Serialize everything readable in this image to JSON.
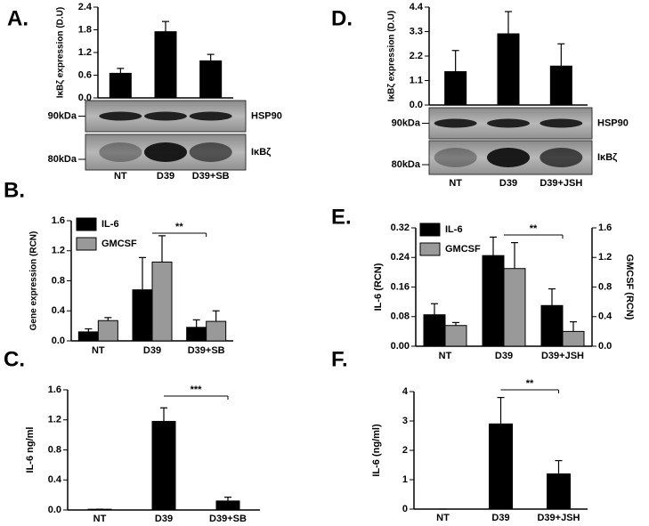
{
  "chart_data": [
    {
      "type": "bar",
      "label": "A.",
      "ylabel": "IκBζ expression (D.U)",
      "categories": [
        "NT",
        "D39",
        "D39+SB"
      ],
      "series": [
        {
          "name": null,
          "color": "#000000",
          "values": [
            0.65,
            1.75,
            0.98
          ],
          "errors": [
            0.13,
            0.27,
            0.17
          ]
        }
      ],
      "ylim": [
        0,
        2.4
      ],
      "yticks": [
        {
          "value": 0,
          "label": "0.0"
        },
        0.6,
        1.2,
        1.8,
        2.4
      ],
      "blot": [
        {
          "size": "90kDa",
          "protein": "HSP90"
        },
        {
          "size": "80kDa",
          "protein": "IκBζ"
        }
      ]
    },
    {
      "type": "bar",
      "label": "B.",
      "ylabel": "Gene expression (RCN)",
      "categories": [
        "NT",
        "D39",
        "D39+SB"
      ],
      "series": [
        {
          "name": "IL-6",
          "color": "#000000",
          "values": [
            0.12,
            0.68,
            0.18
          ],
          "errors": [
            0.04,
            0.43,
            0.1
          ]
        },
        {
          "name": "GMCSF",
          "color": "#999999",
          "values": [
            0.27,
            1.05,
            0.26
          ],
          "errors": [
            0.04,
            0.35,
            0.14
          ]
        }
      ],
      "ylim": [
        0,
        1.6
      ],
      "yticks": [
        {
          "value": 0,
          "label": "0.0"
        },
        0.4,
        0.8,
        1.2,
        1.6
      ],
      "annotation": "**"
    },
    {
      "type": "bar",
      "label": "C.",
      "ylabel": "IL-6 ng/ml",
      "categories": [
        "NT",
        "D39",
        "D39+SB"
      ],
      "series": [
        {
          "name": null,
          "color": "#000000",
          "values": [
            0.01,
            1.18,
            0.12
          ],
          "errors": [
            0,
            0.18,
            0.05
          ]
        }
      ],
      "ylim": [
        0,
        1.6
      ],
      "yticks": [
        {
          "value": 0,
          "label": "0.0"
        },
        0.4,
        0.8,
        1.2,
        1.6
      ],
      "annotation": "***"
    },
    {
      "type": "bar",
      "label": "D.",
      "ylabel": "IκBζ expression (D.U)",
      "categories": [
        "NT",
        "D39",
        "D39+JSH"
      ],
      "series": [
        {
          "name": null,
          "color": "#000000",
          "values": [
            1.5,
            3.2,
            1.75
          ],
          "errors": [
            0.95,
            1.0,
            1.0
          ]
        }
      ],
      "ylim": [
        0,
        4.4
      ],
      "yticks": [
        {
          "value": 0,
          "label": "0.0"
        },
        1.1,
        2.2,
        3.3,
        4.4
      ],
      "blot": [
        {
          "size": "90kDa",
          "protein": "HSP90"
        },
        {
          "size": "80kDa",
          "protein": "IκBζ"
        }
      ]
    },
    {
      "type": "bar",
      "label": "E.",
      "ylabel": "IL-6 (RCN)",
      "y2label": "GMCSF (RCN)",
      "categories": [
        "NT",
        "D39",
        "D39+JSH"
      ],
      "series": [
        {
          "name": "IL-6",
          "color": "#000000",
          "values": [
            0.085,
            0.245,
            0.11
          ],
          "errors": [
            0.03,
            0.05,
            0.045
          ]
        },
        {
          "name": "GMCSF",
          "color": "#999999",
          "axis": "y2",
          "values": [
            0.28,
            1.05,
            0.2
          ],
          "errors": [
            0.04,
            0.35,
            0.13
          ]
        }
      ],
      "ylim": [
        0,
        0.32
      ],
      "yticks": [
        {
          "value": 0,
          "label": "0.00"
        },
        0.08,
        0.16,
        0.24,
        0.32
      ],
      "y2lim": [
        0,
        1.6
      ],
      "y2ticks": [
        {
          "value": 0,
          "label": "0.0"
        },
        0.4,
        0.8,
        1.2,
        1.6
      ],
      "annotation": "**"
    },
    {
      "type": "bar",
      "label": "F.",
      "ylabel": "IL-6 (ng/ml)",
      "categories": [
        "NT",
        "D39",
        "D39+JSH"
      ],
      "series": [
        {
          "name": null,
          "color": "#000000",
          "values": [
            0,
            2.9,
            1.2
          ],
          "errors": [
            0,
            0.9,
            0.45
          ]
        }
      ],
      "ylim": [
        0,
        4
      ],
      "yticks": [
        0,
        1,
        2,
        3,
        4
      ],
      "annotation": "**"
    }
  ]
}
